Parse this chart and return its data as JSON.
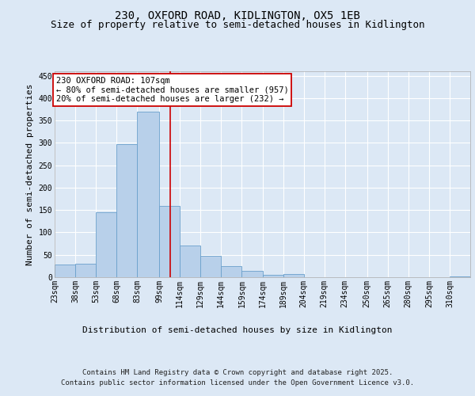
{
  "title_line1": "230, OXFORD ROAD, KIDLINGTON, OX5 1EB",
  "title_line2": "Size of property relative to semi-detached houses in Kidlington",
  "xlabel": "Distribution of semi-detached houses by size in Kidlington",
  "ylabel": "Number of semi-detached properties",
  "footer_line1": "Contains HM Land Registry data © Crown copyright and database right 2025.",
  "footer_line2": "Contains public sector information licensed under the Open Government Licence v3.0.",
  "annotation_line1": "230 OXFORD ROAD: 107sqm",
  "annotation_line2": "← 80% of semi-detached houses are smaller (957)",
  "annotation_line3": "20% of semi-detached houses are larger (232) →",
  "bar_edges": [
    23,
    38,
    53,
    68,
    83,
    99,
    114,
    129,
    144,
    159,
    174,
    189,
    204,
    219,
    234,
    250,
    265,
    280,
    295,
    310,
    325
  ],
  "bar_values": [
    28,
    30,
    145,
    298,
    370,
    160,
    70,
    48,
    24,
    15,
    5,
    7,
    0,
    0,
    0,
    0,
    0,
    0,
    0,
    2
  ],
  "bar_color": "#b8d0ea",
  "bar_edge_color": "#6aa0cc",
  "marker_x": 107,
  "marker_color": "#cc0000",
  "ylim": [
    0,
    460
  ],
  "xlim": [
    23,
    325
  ],
  "background_color": "#dce8f5",
  "plot_bg_color": "#dce8f5",
  "grid_color": "#ffffff",
  "title_fontsize": 10,
  "subtitle_fontsize": 9,
  "axis_label_fontsize": 8,
  "tick_fontsize": 7,
  "annotation_fontsize": 7.5,
  "footer_fontsize": 6.5,
  "ylabel_fontsize": 8
}
